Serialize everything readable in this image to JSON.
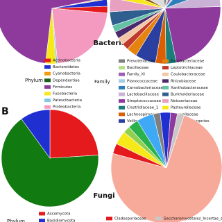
{
  "chart_data": [
    {
      "type": "pie",
      "label": "Bacteria",
      "legend_title": "Phylum",
      "categories": [
        "Actinobacteria",
        "Bacteroidetes",
        "Cyanobacteria",
        "Dependentiae",
        "Firmicutes",
        "Fusobacteria",
        "Patescibacteria",
        "Proteobacteria"
      ],
      "values": [
        2,
        2,
        0.3,
        0.2,
        70,
        3,
        0.5,
        22
      ],
      "colors": [
        "#e41a1c",
        "#1f2fd0",
        "#f39c12",
        "#1b5e20",
        "#8e3a9c",
        "#f7e81a",
        "#7ec8e3",
        "#f49ac1"
      ]
    },
    {
      "type": "pie",
      "legend_title": "Family",
      "categories": [
        "Prevotellaceae",
        "Bacillaceae",
        "Family_XI",
        "Planococcaceae",
        "Carnobacteriaceae",
        "Lactobacillaceae",
        "Streptococcaceae",
        "Clostridiaceae_1",
        "Lachnospiraceae",
        "Veillonellaceae",
        "Fusobacteriaceae",
        "Leptotrichiaceae",
        "Caulobacteraceae",
        "Rhizobiaceae",
        "Xanthobacteraceae",
        "Burkholderiaceae",
        "Neisseriaceae",
        "Pasteurellaceae",
        "Moraxellaceae",
        "All Other Categories"
      ],
      "values": [
        5,
        3,
        4,
        2,
        8,
        5,
        22,
        3,
        3,
        6,
        3,
        2,
        2,
        2,
        2,
        4,
        4,
        3,
        2,
        14
      ],
      "colors": [
        "#7f7f7f",
        "#b7dd8b",
        "#9c5fb5",
        "#a6cee3",
        "#2c7fb8",
        "#cab2d6",
        "#8e3a9c",
        "#1a7f7a",
        "#d95f02",
        "#2a3f9f",
        "#e6820e",
        "#c0392b",
        "#f3c6a5",
        "#4b2a6b",
        "#66c2a5",
        "#2f5f8f",
        "#e7a0c0",
        "#f7e81a",
        "#8c510a",
        "#dcdcdc"
      ]
    },
    {
      "type": "pie",
      "panel_label": "B",
      "label": "Fungi",
      "legend_title": "Phylum",
      "categories": [
        "Ascomycota",
        null,
        "Basidiomycota"
      ],
      "values": [
        24,
        66,
        10
      ],
      "colors": [
        "#e41a1c",
        "#117a11",
        "#1f2fd0"
      ]
    },
    {
      "type": "pie",
      "categories": [
        "Cladosporiaceae",
        null,
        null,
        null,
        null,
        null,
        null,
        null,
        "Saccharomycetales_Incertae_sedis",
        null
      ],
      "values": [
        3,
        4,
        2,
        3,
        5,
        2,
        3,
        2,
        2,
        74
      ],
      "colors": [
        "#e41a1c",
        "#f7e81a",
        "#8fd14f",
        "#2bb24c",
        "#3fa9f5",
        "#7f7f7f",
        "#1f2fd0",
        "#8e3a9c",
        "#c8c8c8",
        "#f7a99a"
      ]
    }
  ]
}
